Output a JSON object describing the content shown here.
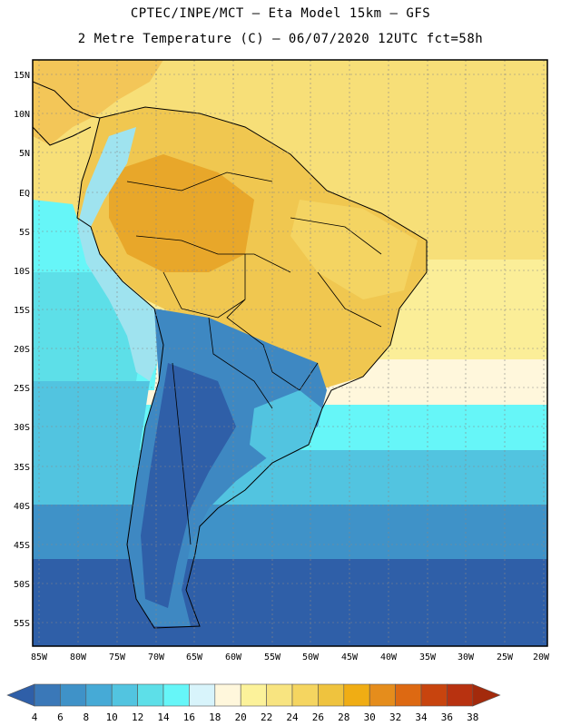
{
  "title_line1": "CPTEC/INPE/MCT –  Eta Model 15km – GFS",
  "title_line2": "2 Metre Temperature (C) – 06/07/2020 12UTC fct=58h",
  "map": {
    "lat_labels": [
      "15N",
      "10N",
      "5N",
      "EQ",
      "5S",
      "10S",
      "15S",
      "20S",
      "25S",
      "30S",
      "35S",
      "40S",
      "45S",
      "50S",
      "55S"
    ],
    "lon_labels": [
      "85W",
      "80W",
      "75W",
      "70W",
      "65W",
      "60W",
      "55W",
      "50W",
      "45W",
      "40W",
      "35W",
      "30W",
      "25W",
      "20W"
    ]
  },
  "colorbar": {
    "labels": [
      "4",
      "6",
      "8",
      "10",
      "12",
      "14",
      "16",
      "18",
      "20",
      "22",
      "24",
      "26",
      "28",
      "30",
      "32",
      "34",
      "36",
      "38"
    ],
    "colors": [
      "#2f5fa8",
      "#3a78b8",
      "#3f92c8",
      "#46aad6",
      "#52c4e0",
      "#5ddfe8",
      "#66f6f8",
      "#d8f4fb",
      "#fff7dc",
      "#fcf29a",
      "#f8e480",
      "#f5d560",
      "#efc33e",
      "#f0ad14",
      "#e58d1c",
      "#dd6912",
      "#c8440e",
      "#b83210",
      "#a32a0c"
    ]
  }
}
